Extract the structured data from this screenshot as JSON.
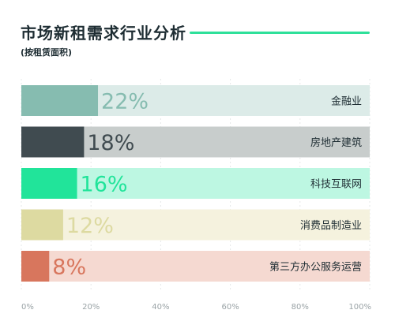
{
  "header": {
    "title": "市场新租需求行业分析",
    "subtitle": "(按租赁面积)",
    "rule_color": "#2ee09a"
  },
  "chart_data": {
    "type": "bar",
    "orientation": "horizontal",
    "title": "市场新租需求行业分析",
    "subtitle": "(按租赁面积)",
    "categories": [
      "金融业",
      "房地产建筑",
      "科技互联网",
      "消费品制造业",
      "第三方办公服务运营"
    ],
    "values": [
      22,
      18,
      16,
      12,
      8
    ],
    "value_labels": [
      "22%",
      "18%",
      "16%",
      "12%",
      "8%"
    ],
    "bar_colors": [
      "#86bcb0",
      "#404b50",
      "#21e49a",
      "#dddaa1",
      "#d8765d"
    ],
    "track_colors": [
      "#dcebe8",
      "#c8cdcc",
      "#bdf7e2",
      "#f5f2de",
      "#f5d9d1"
    ],
    "x_ticks": [
      "0%",
      "20%",
      "40%",
      "60%",
      "80%",
      "100%"
    ],
    "xlim": [
      0,
      100
    ],
    "grid": true,
    "xlabel": "",
    "ylabel": ""
  }
}
